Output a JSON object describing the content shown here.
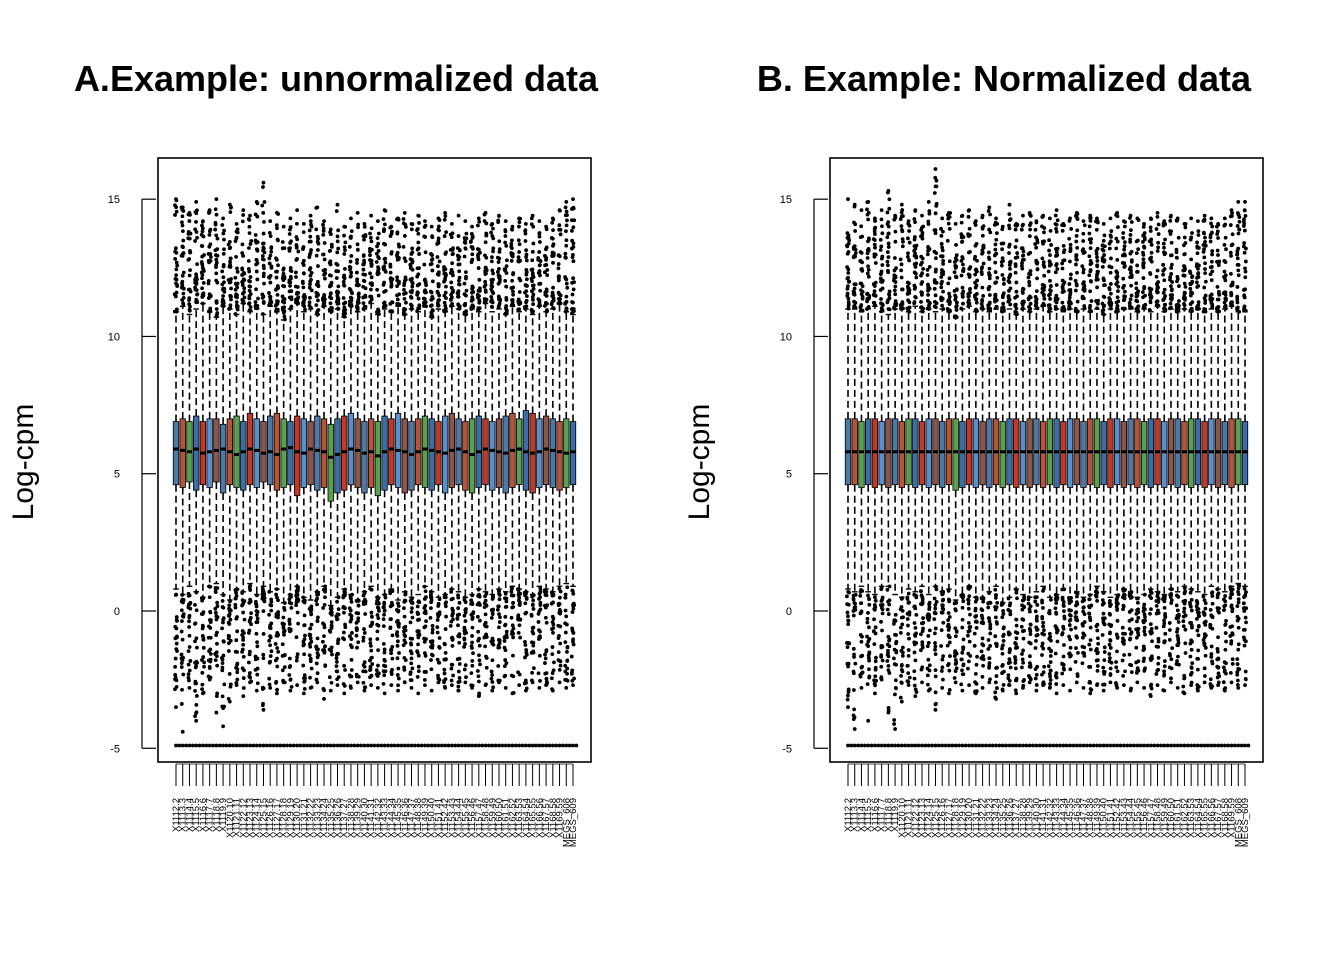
{
  "chart_data": [
    {
      "type": "boxplot",
      "title": "A.Example: unnormalized data",
      "ylabel": "Log-cpm",
      "xlabel": "",
      "ylim": [
        -5.5,
        16.5
      ],
      "yticks": [
        -5,
        0,
        5,
        10,
        15
      ],
      "n_samples": 60,
      "box_colors": [
        "#4e79a7",
        "#b5543a",
        "#59a14f",
        "#3a6ea5",
        "#c0392b",
        "#5b8fc9",
        "#8c564b"
      ],
      "median": [
        5.9,
        5.85,
        5.8,
        5.9,
        5.75,
        5.8,
        5.85,
        5.9,
        5.8,
        5.7,
        5.8,
        5.9,
        5.85,
        5.75,
        5.8,
        5.7,
        5.9,
        5.95,
        5.8,
        5.75,
        5.9,
        5.85,
        5.8,
        5.6,
        5.7,
        5.8,
        5.9,
        5.85,
        5.75,
        5.8,
        5.65,
        5.8,
        5.9,
        5.85,
        5.8,
        5.7,
        5.8,
        5.9,
        5.85,
        5.8,
        5.75,
        5.85,
        5.9,
        5.8,
        5.7,
        5.8,
        5.9,
        5.85,
        5.8,
        5.75,
        5.85,
        5.9,
        5.8,
        5.75,
        5.8,
        5.9,
        5.85,
        5.8,
        5.75,
        5.8
      ],
      "q1": [
        4.6,
        4.5,
        4.7,
        4.4,
        4.6,
        4.5,
        4.7,
        4.3,
        4.6,
        4.5,
        4.4,
        4.6,
        4.5,
        4.7,
        4.6,
        4.4,
        4.5,
        4.6,
        4.2,
        4.5,
        4.6,
        4.4,
        4.5,
        4.0,
        4.3,
        4.4,
        4.6,
        4.5,
        4.3,
        4.5,
        4.2,
        4.4,
        4.6,
        4.5,
        4.3,
        4.4,
        4.6,
        4.5,
        4.4,
        4.6,
        4.3,
        4.5,
        4.6,
        4.4,
        4.3,
        4.5,
        4.6,
        4.4,
        4.5,
        4.3,
        4.5,
        4.6,
        4.4,
        4.3,
        4.5,
        4.6,
        4.5,
        4.4,
        4.5,
        4.6
      ],
      "q3": [
        6.9,
        7.0,
        6.9,
        7.1,
        6.9,
        7.0,
        7.0,
        6.8,
        7.0,
        7.1,
        6.9,
        7.2,
        7.0,
        6.9,
        7.1,
        7.2,
        7.0,
        6.9,
        7.1,
        7.0,
        6.9,
        7.1,
        7.0,
        6.8,
        7.0,
        7.1,
        7.2,
        7.0,
        6.9,
        7.0,
        6.9,
        7.1,
        7.0,
        7.2,
        7.0,
        6.9,
        7.0,
        7.1,
        7.0,
        6.9,
        7.1,
        7.2,
        7.0,
        6.9,
        7.0,
        7.1,
        7.0,
        6.9,
        7.0,
        7.1,
        7.2,
        7.0,
        7.3,
        7.2,
        7.0,
        7.1,
        7.0,
        6.9,
        7.0,
        6.9
      ],
      "whisker_low": [
        0.8,
        0.6,
        0.9,
        0.7,
        0.5,
        0.9,
        1.0,
        0.6,
        0.4,
        0.8,
        0.7,
        1.0,
        0.6,
        0.9,
        0.7,
        0.8,
        0.3,
        0.6,
        0.9,
        0.5,
        0.4,
        0.7,
        0.9,
        0.2,
        0.5,
        0.8,
        0.6,
        0.4,
        0.7,
        0.9,
        0.5,
        0.6,
        0.8,
        0.4,
        0.7,
        0.5,
        0.6,
        0.9,
        0.7,
        0.5,
        0.6,
        0.8,
        0.7,
        0.5,
        0.6,
        0.8,
        0.7,
        0.6,
        0.8,
        0.7,
        0.9,
        0.8,
        0.7,
        0.6,
        0.9,
        0.8,
        0.7,
        0.9,
        1.0,
        0.9
      ],
      "whisker_high": [
        10.9,
        11.1,
        10.8,
        11.0,
        11.2,
        10.9,
        10.7,
        11.1,
        11.0,
        10.8,
        11.2,
        10.9,
        11.0,
        10.8,
        11.1,
        10.9,
        10.6,
        11.0,
        11.2,
        10.9,
        11.0,
        10.8,
        11.1,
        10.9,
        11.0,
        10.7,
        11.1,
        10.9,
        11.0,
        11.2,
        10.8,
        11.0,
        10.9,
        11.1,
        10.8,
        11.0,
        10.9,
        11.1,
        10.7,
        11.0,
        10.9,
        11.1,
        11.0,
        10.8,
        11.0,
        10.9,
        11.2,
        10.9,
        11.0,
        10.8,
        11.1,
        10.9,
        11.0,
        10.8,
        11.1,
        10.9,
        11.0,
        11.2,
        10.9,
        10.8
      ],
      "outlier_high_max": [
        15.0,
        14.7,
        14.5,
        14.9,
        14.2,
        14.6,
        15.0,
        14.3,
        14.8,
        14.1,
        14.6,
        14.4,
        14.9,
        15.6,
        14.2,
        14.5,
        14.0,
        14.3,
        14.6,
        14.1,
        14.4,
        14.7,
        14.2,
        13.9,
        14.8,
        14.0,
        14.3,
        14.5,
        14.1,
        14.4,
        14.2,
        14.6,
        14.0,
        14.3,
        14.5,
        14.1,
        14.4,
        14.2,
        14.0,
        14.3,
        14.5,
        14.1,
        14.4,
        14.2,
        14.0,
        14.3,
        14.5,
        14.1,
        14.4,
        14.2,
        14.0,
        14.3,
        14.1,
        14.4,
        14.2,
        14.0,
        14.3,
        14.6,
        14.9,
        15.0
      ],
      "outlier_low_min": [
        -3.5,
        -4.4,
        -2.8,
        -4.0,
        -3.0,
        -2.5,
        -3.7,
        -4.2,
        -3.3,
        -2.7,
        -3.1,
        -2.6,
        -2.9,
        -3.6,
        -2.8,
        -3.0,
        -2.6,
        -2.9,
        -2.7,
        -3.0,
        -2.8,
        -2.6,
        -3.2,
        -2.9,
        -2.7,
        -3.0,
        -2.8,
        -2.6,
        -2.9,
        -2.7,
        -2.8,
        -3.0,
        -2.7,
        -2.9,
        -2.6,
        -2.8,
        -3.0,
        -2.7,
        -2.9,
        -2.6,
        -2.8,
        -2.7,
        -2.9,
        -2.6,
        -2.8,
        -3.1,
        -2.7,
        -2.9,
        -2.6,
        -2.8,
        -3.0,
        -2.7,
        -2.9,
        -2.6,
        -2.8,
        -2.7,
        -2.9,
        -2.6,
        -2.8,
        -2.7
      ],
      "outlier_floor": -4.9,
      "tick_labels": [
        "X1112.2",
        "X1113.3",
        "X1114.4",
        "X1115.5",
        "X1116.6",
        "X1117.7",
        "X1118.8",
        "X1119.9",
        "X1120.10",
        "X1121.11",
        "X1122.12",
        "X1123.13",
        "X1124.14",
        "X1125.15",
        "X1126.16",
        "X1127.17",
        "X1128.18",
        "X1129.19",
        "X1130.20",
        "X1131.21",
        "X1132.22",
        "X1133.23",
        "X1134.24",
        "X1135.25",
        "X1136.26",
        "X1137.27",
        "X1138.28",
        "X1139.29",
        "X1140.30",
        "X1141.31",
        "X1142.32",
        "X1143.33",
        "X1144.34",
        "X1145.35",
        "X1146.36",
        "X1147.37",
        "X1148.38",
        "X1149.39",
        "X1150.40",
        "X1151.41",
        "X1152.42",
        "X1153.43",
        "X1154.44",
        "X1155.45",
        "X1156.46",
        "X1157.47",
        "X1158.48",
        "X1159.49",
        "X1160.50",
        "X1161.51",
        "X1162.52",
        "X1163.53",
        "X1164.54",
        "X1165.55",
        "X1166.56",
        "X1167.57",
        "X1168.58",
        "X1169.59",
        "MEGS_608",
        "MEGS_609"
      ]
    },
    {
      "type": "boxplot",
      "title": "B. Example: Normalized data",
      "ylabel": "Log-cpm",
      "xlabel": "",
      "ylim": [
        -5.5,
        16.5
      ],
      "yticks": [
        -5,
        0,
        5,
        10,
        15
      ],
      "n_samples": 60,
      "box_colors": [
        "#4e79a7",
        "#b5543a",
        "#59a14f",
        "#3a6ea5",
        "#c0392b",
        "#5b8fc9",
        "#8c564b"
      ],
      "median": [
        5.8,
        5.8,
        5.8,
        5.8,
        5.8,
        5.8,
        5.8,
        5.8,
        5.8,
        5.8,
        5.8,
        5.8,
        5.8,
        5.8,
        5.8,
        5.8,
        5.8,
        5.8,
        5.8,
        5.8,
        5.8,
        5.8,
        5.8,
        5.8,
        5.8,
        5.8,
        5.8,
        5.8,
        5.8,
        5.8,
        5.8,
        5.8,
        5.8,
        5.8,
        5.8,
        5.8,
        5.8,
        5.8,
        5.8,
        5.8,
        5.8,
        5.8,
        5.8,
        5.8,
        5.8,
        5.8,
        5.8,
        5.8,
        5.8,
        5.8,
        5.8,
        5.8,
        5.8,
        5.8,
        5.8,
        5.8,
        5.8,
        5.8,
        5.8,
        5.8
      ],
      "q1": [
        4.6,
        4.6,
        4.5,
        4.6,
        4.5,
        4.6,
        4.5,
        4.6,
        4.5,
        4.6,
        4.5,
        4.6,
        4.5,
        4.6,
        4.5,
        4.6,
        4.4,
        4.5,
        4.6,
        4.5,
        4.6,
        4.5,
        4.6,
        4.5,
        4.6,
        4.5,
        4.6,
        4.5,
        4.6,
        4.5,
        4.6,
        4.5,
        4.6,
        4.5,
        4.6,
        4.5,
        4.6,
        4.5,
        4.6,
        4.5,
        4.6,
        4.5,
        4.6,
        4.5,
        4.6,
        4.5,
        4.6,
        4.5,
        4.6,
        4.5,
        4.6,
        4.5,
        4.6,
        4.5,
        4.6,
        4.5,
        4.6,
        4.5,
        4.6,
        4.6
      ],
      "q3": [
        7.0,
        7.0,
        6.9,
        7.0,
        7.0,
        6.9,
        7.0,
        7.0,
        6.9,
        7.0,
        7.0,
        6.9,
        7.0,
        7.0,
        6.9,
        7.0,
        7.0,
        6.9,
        7.0,
        7.0,
        6.9,
        7.0,
        7.0,
        6.9,
        7.0,
        7.0,
        6.9,
        7.0,
        7.0,
        6.9,
        7.0,
        7.0,
        6.9,
        7.0,
        7.0,
        6.9,
        7.0,
        7.0,
        6.9,
        7.0,
        7.0,
        6.9,
        7.0,
        7.0,
        6.9,
        7.0,
        7.0,
        6.9,
        7.0,
        7.0,
        6.9,
        7.0,
        7.0,
        6.9,
        7.0,
        7.0,
        6.9,
        7.0,
        7.0,
        6.9
      ],
      "whisker_low": [
        0.8,
        0.7,
        0.9,
        0.7,
        0.6,
        0.9,
        0.9,
        0.6,
        0.5,
        0.8,
        0.7,
        0.9,
        0.6,
        0.9,
        0.7,
        0.8,
        0.4,
        0.6,
        0.9,
        0.5,
        0.5,
        0.7,
        0.9,
        0.3,
        0.5,
        0.8,
        0.6,
        0.5,
        0.7,
        0.9,
        0.5,
        0.6,
        0.8,
        0.5,
        0.7,
        0.5,
        0.6,
        0.9,
        0.7,
        0.5,
        0.6,
        0.8,
        0.7,
        0.5,
        0.6,
        0.8,
        0.7,
        0.6,
        0.8,
        0.7,
        0.9,
        0.8,
        0.7,
        0.6,
        0.9,
        0.8,
        0.7,
        0.9,
        1.0,
        0.9
      ],
      "whisker_high": [
        11.0,
        11.0,
        10.9,
        11.0,
        11.1,
        10.9,
        10.8,
        11.0,
        11.0,
        10.9,
        11.1,
        10.9,
        11.0,
        10.9,
        11.0,
        10.9,
        10.7,
        11.0,
        11.1,
        10.9,
        11.0,
        10.9,
        11.0,
        10.9,
        11.0,
        10.8,
        11.0,
        10.9,
        11.0,
        11.1,
        10.9,
        11.0,
        10.9,
        11.0,
        10.9,
        11.0,
        10.9,
        11.0,
        10.8,
        11.0,
        10.9,
        11.0,
        11.0,
        10.9,
        11.0,
        10.9,
        11.1,
        10.9,
        11.0,
        10.9,
        11.0,
        10.9,
        11.0,
        10.9,
        11.0,
        10.9,
        11.0,
        11.1,
        10.9,
        10.9
      ],
      "outlier_high_max": [
        15.0,
        14.8,
        14.6,
        14.9,
        14.3,
        14.6,
        15.3,
        14.4,
        14.8,
        14.2,
        14.6,
        14.4,
        14.9,
        16.1,
        14.3,
        14.5,
        14.1,
        14.4,
        14.6,
        14.2,
        14.4,
        14.7,
        14.3,
        14.0,
        14.8,
        14.1,
        14.4,
        14.5,
        14.2,
        14.4,
        14.3,
        14.6,
        14.1,
        14.3,
        14.5,
        14.2,
        14.4,
        14.3,
        14.1,
        14.3,
        14.5,
        14.2,
        14.4,
        14.3,
        14.1,
        14.3,
        14.5,
        14.2,
        14.4,
        14.3,
        14.1,
        14.3,
        14.2,
        14.4,
        14.3,
        14.1,
        14.3,
        14.6,
        14.9,
        14.9
      ],
      "outlier_low_min": [
        -3.5,
        -4.3,
        -2.8,
        -4.0,
        -3.0,
        -2.5,
        -3.7,
        -4.3,
        -3.3,
        -2.7,
        -3.1,
        -2.6,
        -2.9,
        -3.6,
        -2.8,
        -3.0,
        -2.6,
        -2.9,
        -2.7,
        -3.0,
        -2.8,
        -2.6,
        -3.2,
        -2.9,
        -2.7,
        -3.0,
        -2.8,
        -2.6,
        -2.9,
        -2.7,
        -2.8,
        -3.0,
        -2.7,
        -2.9,
        -2.6,
        -2.8,
        -3.0,
        -2.7,
        -2.9,
        -2.6,
        -2.8,
        -2.7,
        -2.9,
        -2.6,
        -2.8,
        -3.1,
        -2.7,
        -2.9,
        -2.6,
        -2.8,
        -3.0,
        -2.7,
        -2.9,
        -2.6,
        -2.8,
        -2.7,
        -2.9,
        -2.6,
        -2.8,
        -2.7
      ],
      "outlier_floor": -4.9,
      "tick_labels": [
        "X1112.2",
        "X1113.3",
        "X1114.4",
        "X1115.5",
        "X1116.6",
        "X1117.7",
        "X1118.8",
        "X1119.9",
        "X1120.10",
        "X1121.11",
        "X1122.12",
        "X1123.13",
        "X1124.14",
        "X1125.15",
        "X1126.16",
        "X1127.17",
        "X1128.18",
        "X1129.19",
        "X1130.20",
        "X1131.21",
        "X1132.22",
        "X1133.23",
        "X1134.24",
        "X1135.25",
        "X1136.26",
        "X1137.27",
        "X1138.28",
        "X1139.29",
        "X1140.30",
        "X1141.31",
        "X1142.32",
        "X1143.33",
        "X1144.34",
        "X1145.35",
        "X1146.36",
        "X1147.37",
        "X1148.38",
        "X1149.39",
        "X1150.40",
        "X1151.41",
        "X1152.42",
        "X1153.43",
        "X1154.44",
        "X1155.45",
        "X1156.46",
        "X1157.47",
        "X1158.48",
        "X1159.49",
        "X1160.50",
        "X1161.51",
        "X1162.52",
        "X1163.53",
        "X1164.54",
        "X1165.55",
        "X1166.56",
        "X1167.57",
        "X1168.58",
        "X1169.59",
        "MEGS_608",
        "MEGS_609"
      ]
    }
  ]
}
